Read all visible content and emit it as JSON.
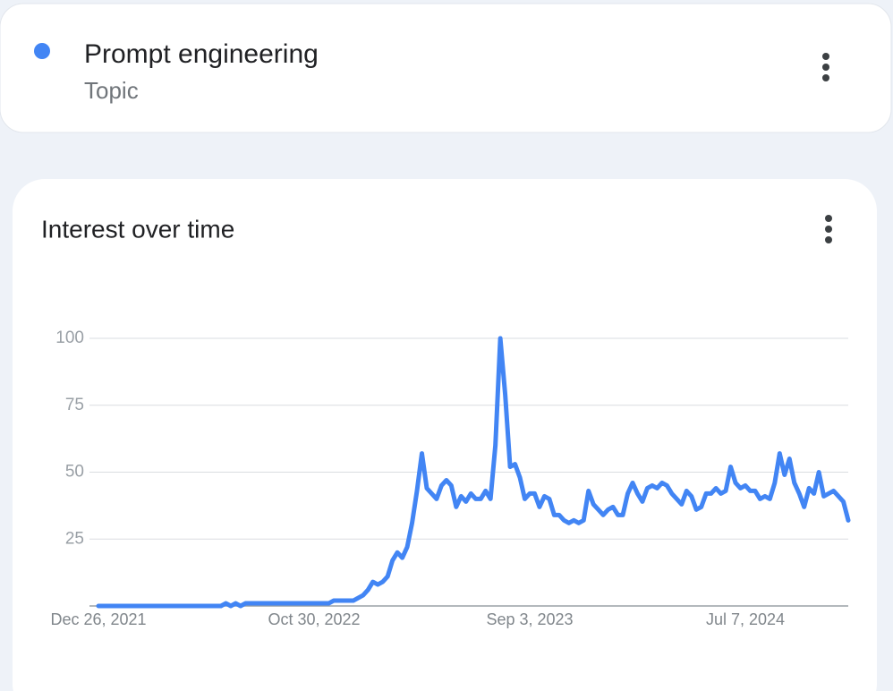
{
  "header": {
    "title": "Prompt engineering",
    "subtitle": "Topic"
  },
  "chart_data": {
    "type": "line",
    "title": "Interest over time",
    "color": "#4285f4",
    "categories": [
      "Dec 26, 2021",
      null,
      null,
      null,
      null,
      null,
      null,
      null,
      null,
      null,
      null,
      null,
      null,
      null,
      null,
      null,
      null,
      null,
      null,
      null,
      null,
      null,
      null,
      null,
      null,
      null,
      null,
      null,
      null,
      null,
      null,
      null,
      null,
      null,
      null,
      null,
      null,
      null,
      null,
      null,
      null,
      null,
      null,
      null,
      "Oct 30, 2022",
      null,
      null,
      null,
      null,
      null,
      null,
      null,
      null,
      null,
      null,
      null,
      null,
      null,
      null,
      null,
      null,
      null,
      null,
      null,
      null,
      null,
      null,
      null,
      null,
      null,
      null,
      null,
      null,
      null,
      null,
      null,
      null,
      null,
      null,
      null,
      null,
      null,
      null,
      null,
      null,
      null,
      null,
      null,
      "Sep 3, 2023",
      null,
      null,
      null,
      null,
      null,
      null,
      null,
      null,
      null,
      null,
      null,
      null,
      null,
      null,
      null,
      null,
      null,
      null,
      null,
      null,
      null,
      null,
      null,
      null,
      null,
      null,
      null,
      null,
      null,
      null,
      null,
      null,
      null,
      null,
      null,
      null,
      null,
      null,
      null,
      null,
      null,
      null,
      null,
      "Jul 7, 2024",
      null,
      null,
      null,
      null,
      null,
      null,
      null,
      null,
      null,
      null,
      null,
      null,
      null,
      null,
      null,
      null,
      null,
      null,
      null,
      null,
      null
    ],
    "values": [
      0,
      0,
      0,
      0,
      0,
      0,
      0,
      0,
      0,
      0,
      0,
      0,
      0,
      0,
      0,
      0,
      0,
      0,
      0,
      0,
      0,
      0,
      0,
      0,
      0,
      0,
      1,
      0,
      1,
      0,
      1,
      1,
      1,
      1,
      1,
      1,
      1,
      1,
      1,
      1,
      1,
      1,
      1,
      1,
      1,
      1,
      1,
      1,
      2,
      2,
      2,
      2,
      2,
      3,
      4,
      6,
      9,
      8,
      9,
      11,
      17,
      20,
      18,
      22,
      31,
      43,
      57,
      44,
      42,
      40,
      45,
      47,
      45,
      37,
      41,
      39,
      42,
      40,
      40,
      43,
      40,
      60,
      100,
      79,
      52,
      53,
      48,
      40,
      42,
      42,
      37,
      41,
      40,
      34,
      34,
      32,
      31,
      32,
      31,
      32,
      43,
      38,
      36,
      34,
      36,
      37,
      34,
      34,
      42,
      46,
      42,
      39,
      44,
      45,
      44,
      46,
      45,
      42,
      40,
      38,
      43,
      41,
      36,
      37,
      42,
      42,
      44,
      42,
      43,
      52,
      46,
      44,
      45,
      43,
      43,
      40,
      41,
      40,
      46,
      57,
      49,
      55,
      46,
      42,
      37,
      44,
      42,
      50,
      41,
      42,
      43,
      41,
      39,
      32
    ],
    "ylim": [
      0,
      100
    ],
    "yticks": [
      25,
      50,
      75,
      100
    ],
    "grid": true
  }
}
